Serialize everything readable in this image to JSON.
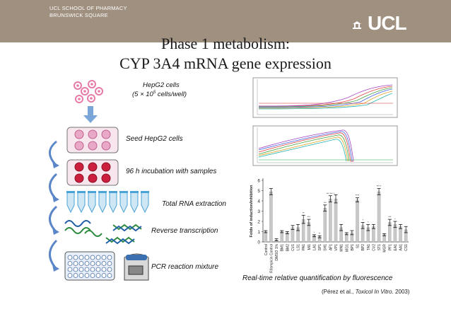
{
  "header": {
    "school_line1": "UCL SCHOOL OF PHARMACY",
    "school_line2": "BRUNSWICK SQUARE",
    "logo_text": "UCL",
    "background": "#a09080"
  },
  "title": {
    "line1": "Phase 1 metabolism:",
    "line2": "CYP 3A4 mRNA gene expression"
  },
  "steps": {
    "hep_line1": "HepG2 cells",
    "hep_line2_prefix": "(5 × 10",
    "hep_line2_sup": "5",
    "hep_line2_suffix": " cells/well)",
    "seed": "Seed HepG2 cells",
    "incubation": "96 h incubation with samples",
    "rna": "Total RNA extraction",
    "reverse": "Reverse transcription",
    "pcr": "PCR reaction mixture"
  },
  "colors": {
    "cell_pink": "#e67aa8",
    "well_red": "#cc1f3d",
    "tube_blue": "#4aa3d6",
    "dna_green": "#2e8b3e",
    "dna_blue": "#1f5fa8",
    "arrow_blue": "#5b86c8"
  },
  "caption": "Real-time relative quantification by fluorescence",
  "citation": {
    "prefix": "(Pérez et al., ",
    "journal": "Toxicol In Vitro.",
    "year": " 2003)"
  },
  "chart_data": {
    "type": "bar",
    "ylabel": "Folds of induction/inhibition",
    "ylim": [
      0,
      6
    ],
    "yticks": [
      0,
      1,
      2,
      3,
      4,
      5,
      6
    ],
    "grid": false,
    "categories": [
      "Control",
      "Rifampicin Control",
      "DMSO 1%",
      "BM1",
      "BM2",
      "CV1",
      "LS1",
      "PA1",
      "MI1",
      "LA1",
      "SP1",
      "SH1",
      "AF1",
      "VP1",
      "MN1",
      "MG1",
      "BP1",
      "S1",
      "BP2",
      "TA1",
      "CV2",
      "ST1",
      "MGR",
      "PF1",
      "EA1",
      "AA1",
      "CS1"
    ],
    "values": [
      1.0,
      4.9,
      0.2,
      1.0,
      0.9,
      1.4,
      1.4,
      2.2,
      1.9,
      0.6,
      0.5,
      3.3,
      4.2,
      4.2,
      1.4,
      0.8,
      0.9,
      4.1,
      1.6,
      1.4,
      1.5,
      4.9,
      0.7,
      1.9,
      1.7,
      1.5,
      1.2
    ],
    "errors": [
      0.1,
      0.3,
      0.1,
      0.1,
      0.1,
      0.2,
      0.3,
      0.4,
      0.3,
      0.1,
      0.1,
      0.3,
      0.3,
      0.4,
      0.3,
      0.1,
      0.2,
      0.2,
      0.3,
      0.3,
      0.2,
      0.3,
      0.1,
      0.3,
      0.3,
      0.2,
      0.3
    ],
    "annotations": [
      "",
      "",
      "",
      "",
      "",
      "",
      "",
      "**",
      "***",
      "*",
      "**",
      "***",
      "*** *** *",
      "",
      "",
      "",
      "",
      "****",
      "*",
      "*",
      "",
      "*** *",
      "",
      "***",
      "*",
      "",
      ""
    ]
  }
}
